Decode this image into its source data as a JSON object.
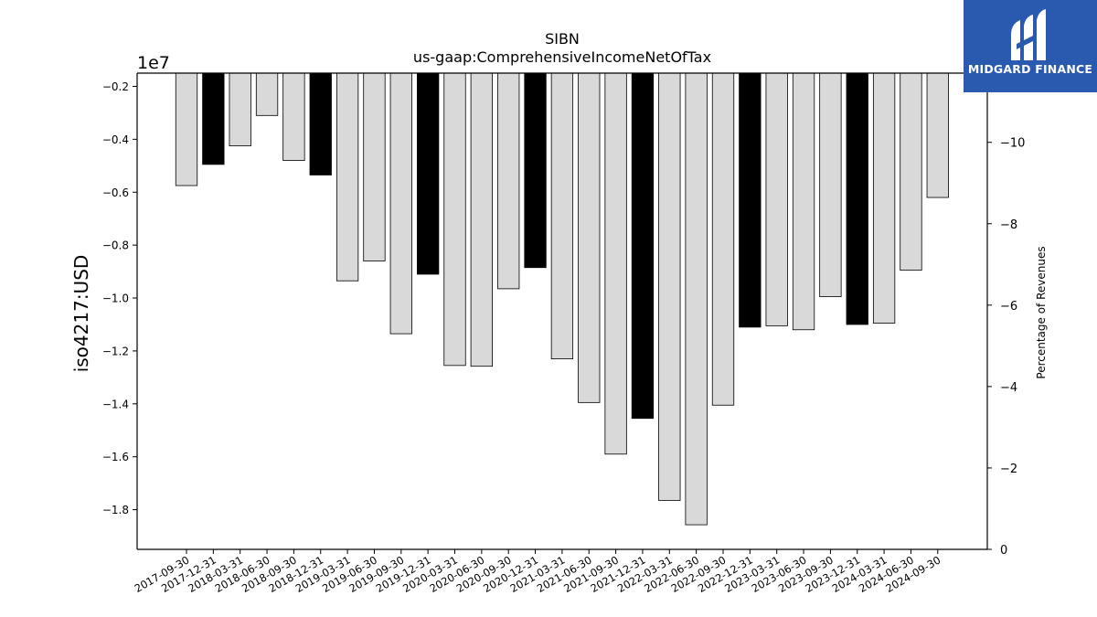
{
  "brand": {
    "name": "MIDGARD FINANCE",
    "bg_color": "#2a5ab0"
  },
  "chart_data": {
    "type": "bar",
    "title": "SIBN",
    "subtitle": "us-gaap:ComprehensiveIncomeNetOfTax",
    "ylabel": "iso4217:USD",
    "y_offset_label": "1e7",
    "y2label": "Percentage of Revenues",
    "ylim": [
      -1.95,
      -0.15
    ],
    "y_scale_multiplier": 10000000,
    "y_ticks": [
      -0.2,
      -0.4,
      -0.6,
      -0.8,
      -1.0,
      -1.2,
      -1.4,
      -1.6,
      -1.8
    ],
    "y_tick_labels": [
      "−0.2",
      "−0.4",
      "−0.6",
      "−0.8",
      "−1.0",
      "−1.2",
      "−1.4",
      "−1.6",
      "−1.8"
    ],
    "y2lim": [
      0,
      11.7
    ],
    "y2_ticks": [
      0,
      2,
      4,
      6,
      8,
      10
    ],
    "y2_tick_labels": [
      "0",
      "−2",
      "−4",
      "−6",
      "−8",
      "−10"
    ],
    "categories": [
      "2017-09-30",
      "2017-12-31",
      "2018-03-31",
      "2018-06-30",
      "2018-09-30",
      "2018-12-31",
      "2019-03-31",
      "2019-06-30",
      "2019-09-30",
      "2019-12-31",
      "2020-03-31",
      "2020-06-30",
      "2020-09-30",
      "2020-12-31",
      "2021-03-31",
      "2021-06-30",
      "2021-09-30",
      "2021-12-31",
      "2022-03-31",
      "2022-06-30",
      "2022-09-30",
      "2022-12-31",
      "2023-03-31",
      "2023-06-30",
      "2023-09-30",
      "2023-12-31",
      "2024-03-31",
      "2024-06-30",
      "2024-09-30"
    ],
    "values": [
      -0.575,
      -0.495,
      -0.425,
      -0.31,
      -0.48,
      -0.535,
      -0.935,
      -0.86,
      -1.135,
      -0.91,
      -1.255,
      -1.258,
      -0.965,
      -0.885,
      -1.23,
      -1.395,
      -1.59,
      -1.455,
      -1.765,
      -1.857,
      -1.405,
      -1.11,
      -1.105,
      -1.12,
      -0.995,
      -1.1,
      -1.095,
      -0.895,
      -0.62
    ],
    "highlight": [
      false,
      true,
      false,
      false,
      false,
      true,
      false,
      false,
      false,
      true,
      false,
      false,
      false,
      true,
      false,
      false,
      false,
      true,
      false,
      false,
      false,
      true,
      false,
      false,
      false,
      true,
      false,
      false,
      false
    ],
    "colors": {
      "bar": "#d9d9d9",
      "highlight": "#000000",
      "edge": "#000000"
    },
    "grid": false,
    "legend": "none"
  }
}
